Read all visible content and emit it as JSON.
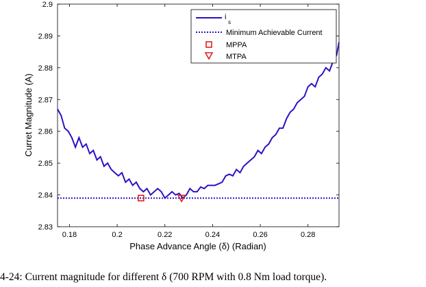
{
  "chart_data": {
    "type": "line",
    "xlabel": "Phase Advance Angle (δ) (Radian)",
    "ylabel": "Curret Magnitude (A)",
    "xlim": [
      0.175,
      0.293
    ],
    "ylim": [
      2.83,
      2.9
    ],
    "xticks": [
      "0.18",
      "0.2",
      "0.22",
      "0.24",
      "0.26",
      "0.28"
    ],
    "yticks": [
      "2.83",
      "2.84",
      "2.85",
      "2.86",
      "2.87",
      "2.88",
      "2.89",
      "2.9"
    ],
    "grid": false,
    "legend_position": "top-right",
    "series": [
      {
        "name": "i_s",
        "style": "solid",
        "color": "#2a12c4",
        "x": [
          0.175,
          0.1765,
          0.178,
          0.1795,
          0.181,
          0.1825,
          0.184,
          0.1855,
          0.187,
          0.1885,
          0.19,
          0.1915,
          0.193,
          0.1945,
          0.196,
          0.1975,
          0.199,
          0.2005,
          0.202,
          0.2035,
          0.205,
          0.2065,
          0.208,
          0.2095,
          0.211,
          0.2125,
          0.214,
          0.2155,
          0.217,
          0.2185,
          0.22,
          0.2215,
          0.223,
          0.2245,
          0.226,
          0.2275,
          0.229,
          0.2305,
          0.232,
          0.2335,
          0.235,
          0.2365,
          0.238,
          0.2395,
          0.241,
          0.2425,
          0.244,
          0.2455,
          0.247,
          0.2485,
          0.25,
          0.2515,
          0.253,
          0.2545,
          0.256,
          0.2575,
          0.259,
          0.2605,
          0.262,
          0.2635,
          0.265,
          0.2665,
          0.268,
          0.2695,
          0.271,
          0.2725,
          0.274,
          0.2755,
          0.277,
          0.2785,
          0.28,
          0.2815,
          0.283,
          0.2845,
          0.286,
          0.2875,
          0.289,
          0.2905,
          0.292,
          0.293
        ],
        "y": [
          2.867,
          2.865,
          2.861,
          2.86,
          2.858,
          2.855,
          2.858,
          2.855,
          2.856,
          2.853,
          2.854,
          2.851,
          2.852,
          2.849,
          2.85,
          2.848,
          2.847,
          2.846,
          2.847,
          2.844,
          2.845,
          2.843,
          2.844,
          2.842,
          2.841,
          2.842,
          2.84,
          2.841,
          2.842,
          2.841,
          2.839,
          2.84,
          2.841,
          2.84,
          2.8405,
          2.839,
          2.84,
          2.842,
          2.841,
          2.841,
          2.8425,
          2.842,
          2.843,
          2.843,
          2.843,
          2.8435,
          2.844,
          2.846,
          2.8465,
          2.846,
          2.848,
          2.847,
          2.849,
          2.85,
          2.851,
          2.852,
          2.854,
          2.853,
          2.855,
          2.856,
          2.858,
          2.859,
          2.861,
          2.861,
          2.864,
          2.866,
          2.867,
          2.869,
          2.87,
          2.871,
          2.874,
          2.875,
          2.874,
          2.877,
          2.878,
          2.88,
          2.879,
          2.882,
          2.884,
          2.888
        ]
      },
      {
        "name": "Minimum Achievable Current",
        "style": "dotted",
        "color": "#2a12c4",
        "x": [
          0.175,
          0.293
        ],
        "y": [
          2.839,
          2.839
        ]
      }
    ],
    "markers": [
      {
        "name": "MPPA",
        "shape": "square",
        "color": "#e0201b",
        "x": 0.21,
        "y": 2.839
      },
      {
        "name": "MTPA",
        "shape": "triangle-down",
        "color": "#e0201b",
        "x": 0.227,
        "y": 2.839
      }
    ],
    "legend": {
      "entries": [
        "i",
        "Minimum Achievable Current",
        "MPPA",
        "MTPA"
      ],
      "is_main": "i",
      "is_sub": "s"
    }
  },
  "caption": "4-24: Current magnitude for different δ (700 RPM with 0.8 Nm load torque)."
}
